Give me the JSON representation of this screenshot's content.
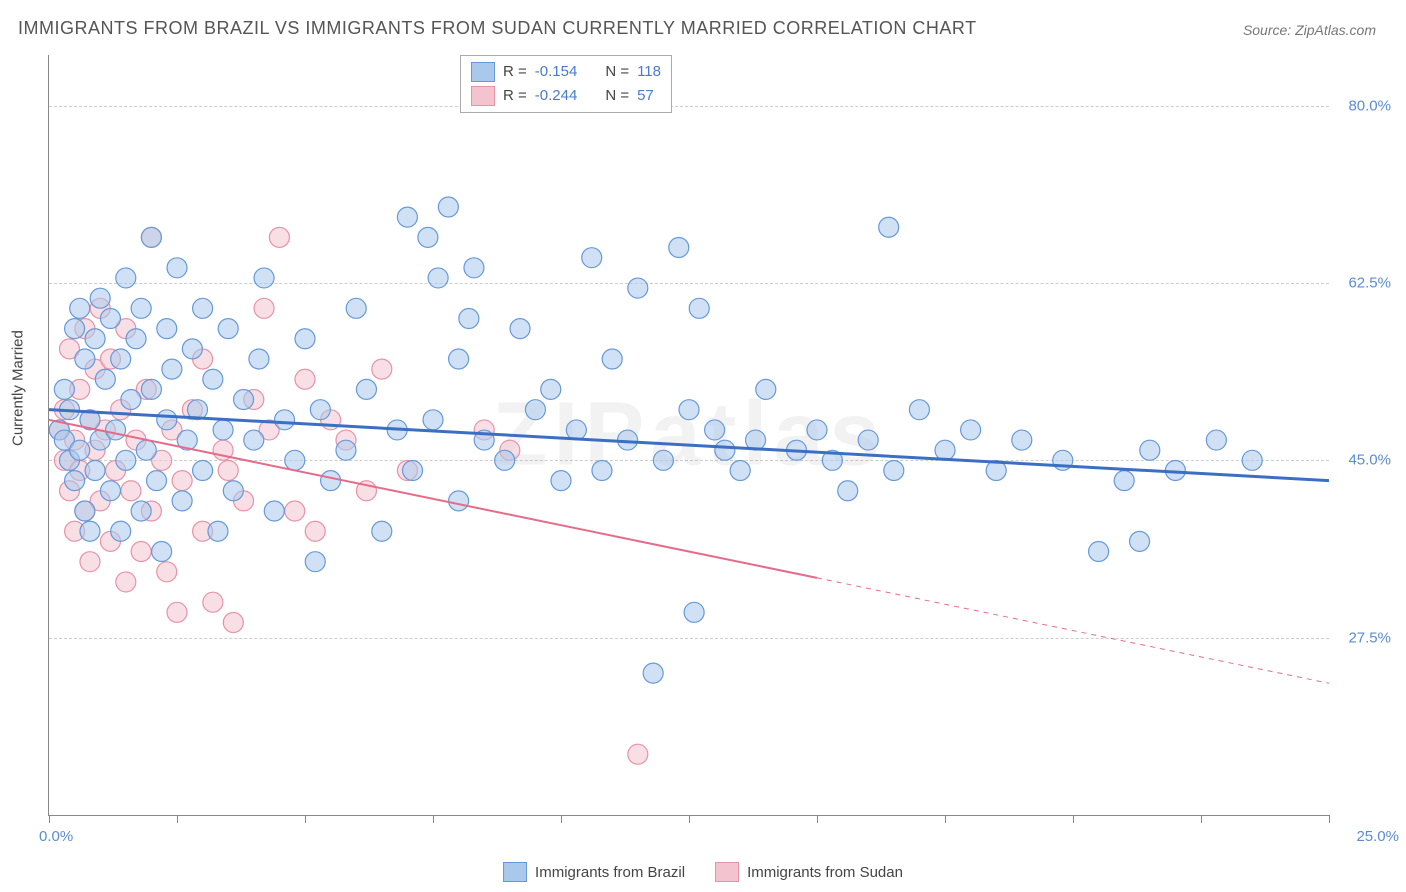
{
  "title": "IMMIGRANTS FROM BRAZIL VS IMMIGRANTS FROM SUDAN CURRENTLY MARRIED CORRELATION CHART",
  "source": "Source: ZipAtlas.com",
  "watermark": "ZIPatlas",
  "ylabel": "Currently Married",
  "chart": {
    "type": "scatter",
    "xlim": [
      0,
      25
    ],
    "ylim": [
      10,
      85
    ],
    "x_tick_step": 2.5,
    "x_label_min": "0.0%",
    "x_label_max": "25.0%",
    "y_ticks": [
      27.5,
      45.0,
      62.5,
      80.0
    ],
    "y_tick_labels": [
      "27.5%",
      "45.0%",
      "62.5%",
      "80.0%"
    ],
    "background_color": "#ffffff",
    "grid_color": "#cccccc",
    "marker_radius": 10,
    "marker_opacity": 0.55,
    "series": [
      {
        "name": "Immigrants from Brazil",
        "color_fill": "#a9c8ec",
        "color_stroke": "#6699d8",
        "r_value": "-0.154",
        "n_value": "118",
        "trendline": {
          "y_at_xmin": 50.0,
          "y_at_xmax": 43.0,
          "color": "#3b6fc4",
          "width": 3
        },
        "points": [
          [
            0.2,
            48
          ],
          [
            0.3,
            47
          ],
          [
            0.3,
            52
          ],
          [
            0.4,
            45
          ],
          [
            0.4,
            50
          ],
          [
            0.5,
            58
          ],
          [
            0.5,
            43
          ],
          [
            0.6,
            60
          ],
          [
            0.6,
            46
          ],
          [
            0.7,
            40
          ],
          [
            0.7,
            55
          ],
          [
            0.8,
            38
          ],
          [
            0.8,
            49
          ],
          [
            0.9,
            57
          ],
          [
            0.9,
            44
          ],
          [
            1.0,
            61
          ],
          [
            1.0,
            47
          ],
          [
            1.1,
            53
          ],
          [
            1.2,
            42
          ],
          [
            1.2,
            59
          ],
          [
            1.3,
            48
          ],
          [
            1.4,
            55
          ],
          [
            1.4,
            38
          ],
          [
            1.5,
            63
          ],
          [
            1.5,
            45
          ],
          [
            1.6,
            51
          ],
          [
            1.7,
            57
          ],
          [
            1.8,
            40
          ],
          [
            1.8,
            60
          ],
          [
            1.9,
            46
          ],
          [
            2.0,
            52
          ],
          [
            2.0,
            67
          ],
          [
            2.1,
            43
          ],
          [
            2.2,
            36
          ],
          [
            2.3,
            58
          ],
          [
            2.3,
            49
          ],
          [
            2.4,
            54
          ],
          [
            2.5,
            64
          ],
          [
            2.6,
            41
          ],
          [
            2.7,
            47
          ],
          [
            2.8,
            56
          ],
          [
            2.9,
            50
          ],
          [
            3.0,
            60
          ],
          [
            3.0,
            44
          ],
          [
            3.2,
            53
          ],
          [
            3.3,
            38
          ],
          [
            3.4,
            48
          ],
          [
            3.5,
            58
          ],
          [
            3.6,
            42
          ],
          [
            3.8,
            51
          ],
          [
            4.0,
            47
          ],
          [
            4.1,
            55
          ],
          [
            4.2,
            63
          ],
          [
            4.4,
            40
          ],
          [
            4.6,
            49
          ],
          [
            4.8,
            45
          ],
          [
            5.0,
            57
          ],
          [
            5.2,
            35
          ],
          [
            5.3,
            50
          ],
          [
            5.5,
            43
          ],
          [
            5.8,
            46
          ],
          [
            6.0,
            60
          ],
          [
            6.2,
            52
          ],
          [
            6.5,
            38
          ],
          [
            6.8,
            48
          ],
          [
            7.0,
            69
          ],
          [
            7.1,
            44
          ],
          [
            7.4,
            67
          ],
          [
            7.5,
            49
          ],
          [
            7.6,
            63
          ],
          [
            7.8,
            70
          ],
          [
            8.0,
            41
          ],
          [
            8.0,
            55
          ],
          [
            8.2,
            59
          ],
          [
            8.3,
            64
          ],
          [
            8.5,
            47
          ],
          [
            8.9,
            45
          ],
          [
            9.2,
            58
          ],
          [
            9.5,
            50
          ],
          [
            9.8,
            52
          ],
          [
            10.0,
            43
          ],
          [
            10.3,
            48
          ],
          [
            10.6,
            65
          ],
          [
            10.8,
            44
          ],
          [
            11.0,
            55
          ],
          [
            11.3,
            47
          ],
          [
            11.5,
            62
          ],
          [
            12.0,
            45
          ],
          [
            12.3,
            66
          ],
          [
            12.5,
            50
          ],
          [
            12.6,
            30
          ],
          [
            12.7,
            60
          ],
          [
            13.0,
            48
          ],
          [
            13.2,
            46
          ],
          [
            13.5,
            44
          ],
          [
            13.8,
            47
          ],
          [
            14.0,
            52
          ],
          [
            11.8,
            24
          ],
          [
            14.6,
            46
          ],
          [
            15.0,
            48
          ],
          [
            15.3,
            45
          ],
          [
            15.6,
            42
          ],
          [
            16.0,
            47
          ],
          [
            16.4,
            68
          ],
          [
            16.5,
            44
          ],
          [
            17.0,
            50
          ],
          [
            17.5,
            46
          ],
          [
            18.0,
            48
          ],
          [
            18.5,
            44
          ],
          [
            19.0,
            47
          ],
          [
            19.8,
            45
          ],
          [
            20.5,
            36
          ],
          [
            21.0,
            43
          ],
          [
            21.5,
            46
          ],
          [
            21.3,
            37
          ],
          [
            22.0,
            44
          ],
          [
            22.8,
            47
          ],
          [
            23.5,
            45
          ]
        ]
      },
      {
        "name": "Immigrants from Sudan",
        "color_fill": "#f3c4cf",
        "color_stroke": "#e892a8",
        "r_value": "-0.244",
        "n_value": "57",
        "trendline": {
          "y_at_xmin": 49.0,
          "y_at_xmax": 23.0,
          "solid_until_x": 15.0,
          "color": "#e56b8a",
          "width": 2
        },
        "points": [
          [
            0.2,
            48
          ],
          [
            0.3,
            45
          ],
          [
            0.3,
            50
          ],
          [
            0.4,
            42
          ],
          [
            0.4,
            56
          ],
          [
            0.5,
            47
          ],
          [
            0.5,
            38
          ],
          [
            0.6,
            52
          ],
          [
            0.6,
            44
          ],
          [
            0.7,
            58
          ],
          [
            0.7,
            40
          ],
          [
            0.8,
            49
          ],
          [
            0.8,
            35
          ],
          [
            0.9,
            54
          ],
          [
            0.9,
            46
          ],
          [
            1.0,
            60
          ],
          [
            1.0,
            41
          ],
          [
            1.1,
            48
          ],
          [
            1.2,
            37
          ],
          [
            1.2,
            55
          ],
          [
            1.3,
            44
          ],
          [
            1.4,
            50
          ],
          [
            1.5,
            33
          ],
          [
            1.5,
            58
          ],
          [
            1.6,
            42
          ],
          [
            1.7,
            47
          ],
          [
            1.8,
            36
          ],
          [
            1.9,
            52
          ],
          [
            2.0,
            67
          ],
          [
            2.0,
            40
          ],
          [
            2.2,
            45
          ],
          [
            2.3,
            34
          ],
          [
            2.4,
            48
          ],
          [
            2.5,
            30
          ],
          [
            2.6,
            43
          ],
          [
            2.8,
            50
          ],
          [
            3.0,
            55
          ],
          [
            3.0,
            38
          ],
          [
            3.2,
            31
          ],
          [
            3.4,
            46
          ],
          [
            3.5,
            44
          ],
          [
            3.6,
            29
          ],
          [
            3.8,
            41
          ],
          [
            4.0,
            51
          ],
          [
            4.2,
            60
          ],
          [
            4.3,
            48
          ],
          [
            4.5,
            67
          ],
          [
            4.8,
            40
          ],
          [
            5.0,
            53
          ],
          [
            5.2,
            38
          ],
          [
            5.5,
            49
          ],
          [
            5.8,
            47
          ],
          [
            6.2,
            42
          ],
          [
            6.5,
            54
          ],
          [
            7.0,
            44
          ],
          [
            8.5,
            48
          ],
          [
            9.0,
            46
          ],
          [
            11.5,
            16
          ]
        ]
      }
    ]
  },
  "legend_top": {
    "r_label": "R =",
    "n_label": "N ="
  },
  "colors": {
    "title": "#555555",
    "axis_label": "#5b8bd4",
    "text": "#444444"
  }
}
